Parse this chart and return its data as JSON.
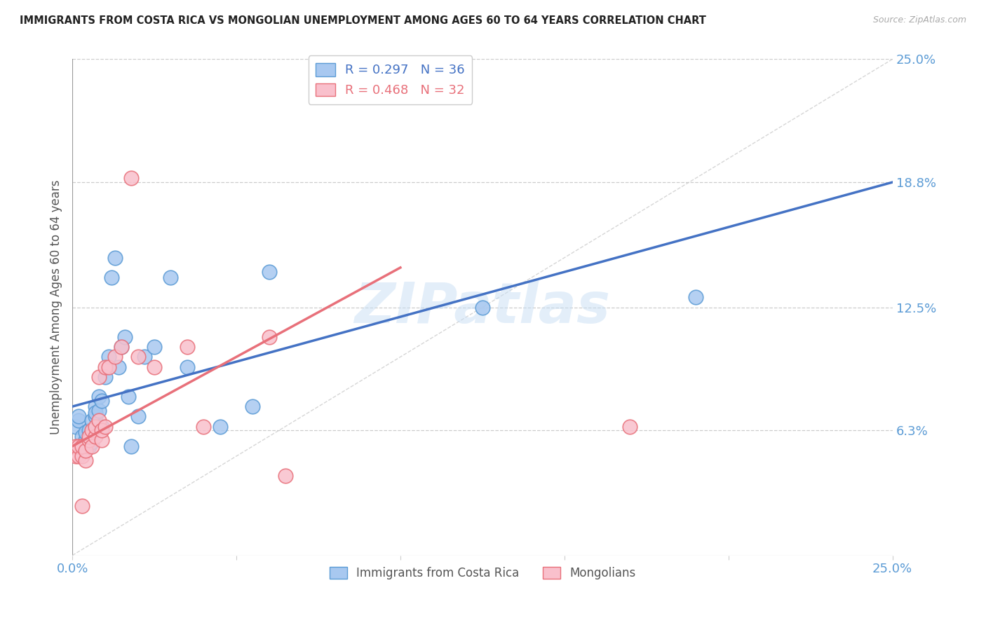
{
  "title": "IMMIGRANTS FROM COSTA RICA VS MONGOLIAN UNEMPLOYMENT AMONG AGES 60 TO 64 YEARS CORRELATION CHART",
  "source": "Source: ZipAtlas.com",
  "ylabel": "Unemployment Among Ages 60 to 64 years",
  "xlim": [
    0.0,
    0.25
  ],
  "ylim": [
    0.0,
    0.25
  ],
  "x_tick_labels": [
    "0.0%",
    "",
    "",
    "",
    "",
    "25.0%"
  ],
  "x_tick_vals": [
    0.0,
    0.05,
    0.1,
    0.15,
    0.2,
    0.25
  ],
  "y_tick_labels_right": [
    "25.0%",
    "18.8%",
    "12.5%",
    "6.3%"
  ],
  "y_tick_vals_right": [
    0.25,
    0.188,
    0.125,
    0.063
  ],
  "watermark": "ZIPatlas",
  "blue_scatter_color": "#a8c8f0",
  "blue_edge_color": "#5b9bd5",
  "pink_scatter_color": "#f9c0cc",
  "pink_edge_color": "#e8707a",
  "blue_line_color": "#4472c4",
  "pink_line_color": "#e8707a",
  "diagonal_color": "#cccccc",
  "grid_color": "#cccccc",
  "costa_rica_x": [
    0.001,
    0.002,
    0.002,
    0.003,
    0.004,
    0.004,
    0.005,
    0.005,
    0.006,
    0.006,
    0.007,
    0.007,
    0.007,
    0.008,
    0.008,
    0.009,
    0.009,
    0.01,
    0.011,
    0.012,
    0.013,
    0.014,
    0.015,
    0.016,
    0.017,
    0.018,
    0.02,
    0.022,
    0.025,
    0.03,
    0.035,
    0.045,
    0.055,
    0.06,
    0.125,
    0.19
  ],
  "costa_rica_y": [
    0.065,
    0.068,
    0.07,
    0.06,
    0.058,
    0.062,
    0.055,
    0.063,
    0.057,
    0.068,
    0.07,
    0.075,
    0.072,
    0.073,
    0.08,
    0.065,
    0.078,
    0.09,
    0.1,
    0.14,
    0.15,
    0.095,
    0.105,
    0.11,
    0.08,
    0.055,
    0.07,
    0.1,
    0.105,
    0.14,
    0.095,
    0.065,
    0.075,
    0.143,
    0.125,
    0.13
  ],
  "mongolian_x": [
    0.001,
    0.001,
    0.002,
    0.002,
    0.003,
    0.003,
    0.004,
    0.004,
    0.005,
    0.005,
    0.006,
    0.006,
    0.007,
    0.007,
    0.008,
    0.008,
    0.009,
    0.009,
    0.01,
    0.01,
    0.011,
    0.013,
    0.015,
    0.018,
    0.02,
    0.025,
    0.035,
    0.04,
    0.06,
    0.065,
    0.17,
    0.003
  ],
  "mongolian_y": [
    0.05,
    0.055,
    0.05,
    0.055,
    0.05,
    0.055,
    0.048,
    0.053,
    0.058,
    0.06,
    0.055,
    0.063,
    0.06,
    0.065,
    0.068,
    0.09,
    0.058,
    0.063,
    0.065,
    0.095,
    0.095,
    0.1,
    0.105,
    0.19,
    0.1,
    0.095,
    0.105,
    0.065,
    0.11,
    0.04,
    0.065,
    0.025
  ],
  "blue_line_x": [
    0.0,
    0.25
  ],
  "blue_line_y": [
    0.075,
    0.188
  ],
  "pink_line_x": [
    0.0,
    0.1
  ],
  "pink_line_y": [
    0.055,
    0.145
  ]
}
